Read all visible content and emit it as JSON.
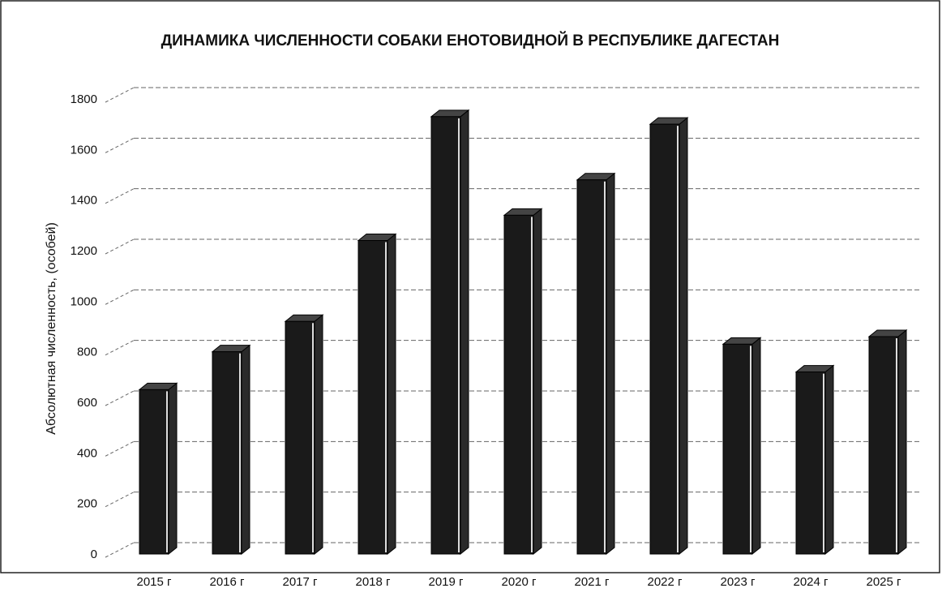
{
  "chart_data": {
    "type": "bar3d",
    "title": "ДИНАМИКА ЧИСЛЕННОСТИ СОБАКИ ЕНОТОВИДНОЙ В РЕСПУБЛИКЕ ДАГЕСТАН",
    "y_label": "Абсолютная численность, (особей)",
    "categories": [
      "2015 г",
      "2016 г",
      "2017 г",
      "2018 г",
      "2019 г",
      "2020 г",
      "2021 г",
      "2022 г",
      "2023 г",
      "2024 г",
      "2025 г"
    ],
    "values": [
      650,
      800,
      920,
      1240,
      1730,
      1340,
      1480,
      1700,
      830,
      720,
      860
    ],
    "color": "#1a1a1a",
    "ylim": [
      0,
      1800
    ],
    "yticks": [
      0,
      200,
      400,
      600,
      800,
      1000,
      1200,
      1400,
      1600,
      1800
    ],
    "grid": true
  }
}
